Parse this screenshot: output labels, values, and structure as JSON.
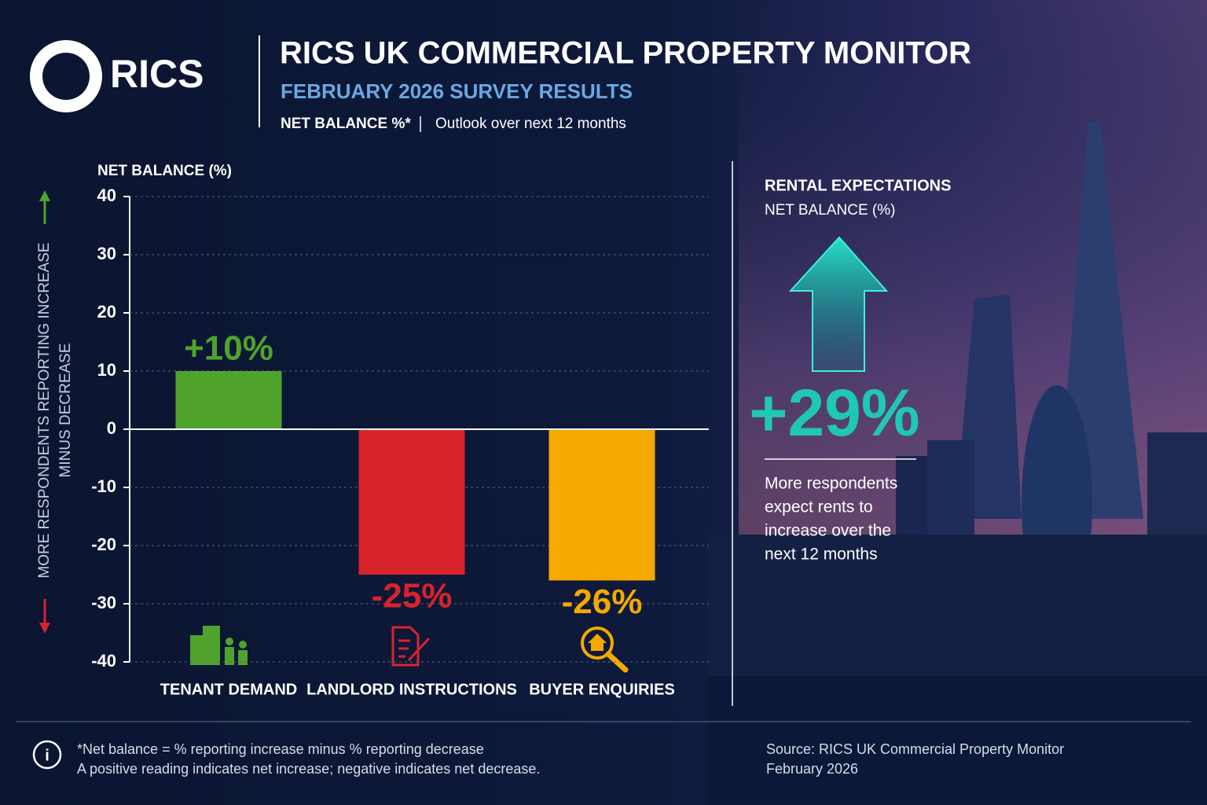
{
  "header": {
    "logo": "RICS",
    "title": "RICS UK COMMERCIAL PROPERTY MONITOR",
    "subtitle": "FEBRUARY 2026 SURVEY RESULTS",
    "measure": "NET BALANCE %*",
    "outlook": "Outlook over next 12 months"
  },
  "chart_data": {
    "type": "bar",
    "axis_title": "NET BALANCE (%)",
    "y_label": [
      "MORE RESPONDENTS REPORTING INCREASE",
      "MINUS DECREASE"
    ],
    "categories": [
      "TENANT DEMAND",
      "LANDLORD INSTRUCTIONS",
      "BUYER ENQUIRIES"
    ],
    "values": [
      10,
      -25,
      -26
    ],
    "value_labels": [
      "+10%",
      "-25%",
      "-26%"
    ],
    "colors": [
      "#4fa32c",
      "#d9232b",
      "#f5a800"
    ],
    "ylim": [
      -40,
      40
    ],
    "yticks": [
      -40,
      -30,
      -20,
      -10,
      0,
      10,
      20,
      30,
      40
    ],
    "grid": true
  },
  "callout": {
    "title": "RENTAL EXPECTATIONS",
    "subtitle": "NET BALANCE (%)",
    "figure": "+29%",
    "description": [
      "More respondents",
      "expect rents to",
      "increase over the",
      "next 12 months"
    ]
  },
  "footer": {
    "notes": [
      "*Net balance = % reporting increase minus % reporting decrease",
      "A positive reading indicates net increase; negative indicates net decrease."
    ],
    "source": [
      "Source: RICS UK Commercial Property Monitor",
      "February 2026"
    ]
  }
}
